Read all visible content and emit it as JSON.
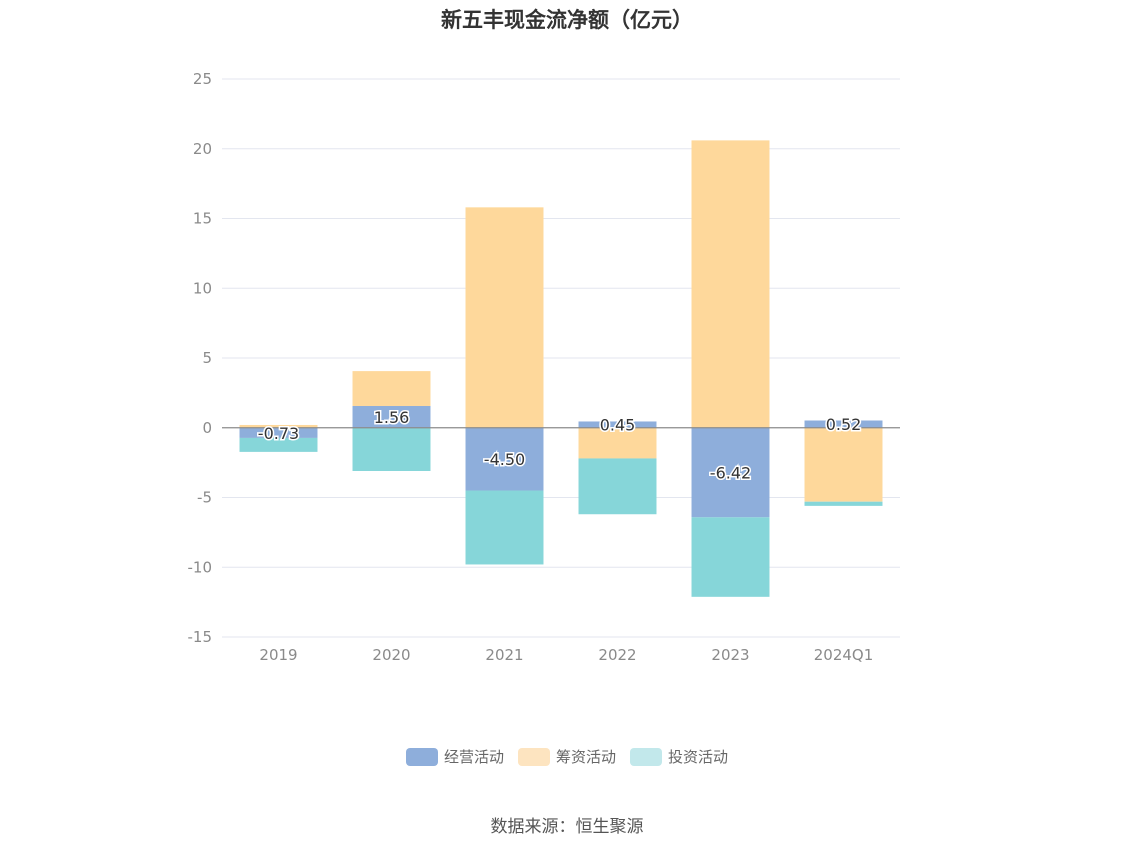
{
  "chart_data": {
    "type": "bar",
    "stacked": true,
    "title": "新五丰现金流净额（亿元）",
    "categories": [
      "2019",
      "2020",
      "2021",
      "2022",
      "2023",
      "2024Q1"
    ],
    "series": [
      {
        "name": "经营活动",
        "color": "#8eaedb",
        "values": [
          -0.73,
          1.56,
          -4.5,
          0.45,
          -6.42,
          0.52
        ]
      },
      {
        "name": "筹资活动",
        "color": "#fed89b",
        "values": [
          0.2,
          2.5,
          15.8,
          -2.2,
          20.6,
          -5.3
        ]
      },
      {
        "name": "投资活动",
        "color": "#86d6d9",
        "values": [
          -1.0,
          -3.1,
          -5.3,
          -4.0,
          -5.7,
          -0.3
        ]
      }
    ],
    "data_labels": [
      "-0.73",
      "1.56",
      "-4.50",
      "0.45",
      "-6.42",
      "0.52"
    ],
    "yticks": [
      "25",
      "20",
      "15",
      "10",
      "5",
      "0",
      "-5",
      "-10",
      "-15"
    ],
    "ylim": [
      -15,
      25
    ],
    "grid": true,
    "legend_position": "bottom"
  },
  "legend": {
    "items": [
      {
        "label": "经营活动",
        "color": "#8eaedb"
      },
      {
        "label": "筹资活动",
        "color": "#fde4c0"
      },
      {
        "label": "投资活动",
        "color": "#c2e8eb"
      }
    ]
  },
  "source": "数据来源：恒生聚源"
}
